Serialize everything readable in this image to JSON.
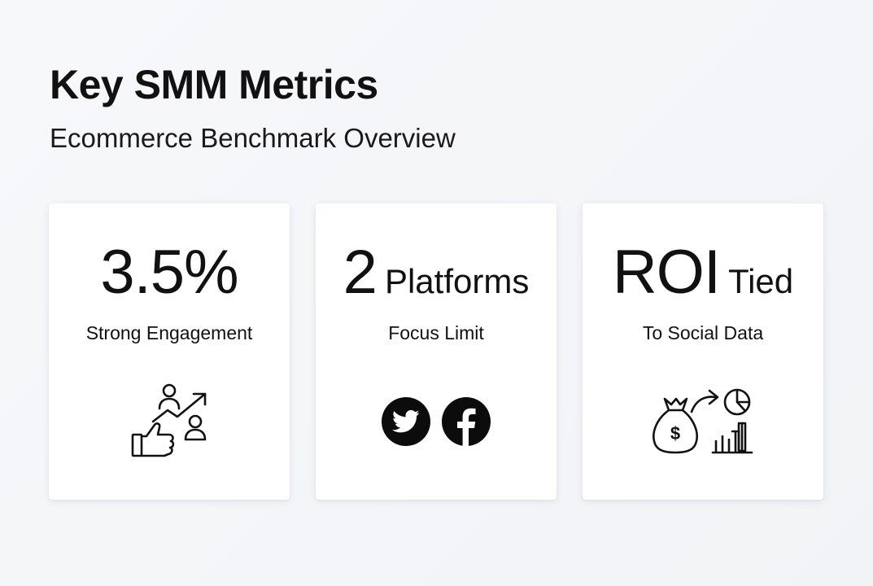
{
  "header": {
    "title": "Key SMM Metrics",
    "subtitle": "Ecommerce Benchmark Overview"
  },
  "cards": [
    {
      "value": "3.5%",
      "value_suffix": "",
      "label": "Strong Engagement",
      "icon": "engagement-growth-icon"
    },
    {
      "value": "2",
      "value_suffix": "Platforms",
      "label": "Focus Limit",
      "icons": [
        "twitter-icon",
        "facebook-icon"
      ]
    },
    {
      "value": "ROI",
      "value_suffix": "Tied",
      "label": "To Social Data",
      "icon": "money-bag-analytics-icon"
    }
  ],
  "colors": {
    "background": "#f4f5f7",
    "card": "#ffffff",
    "text": "#111111"
  }
}
